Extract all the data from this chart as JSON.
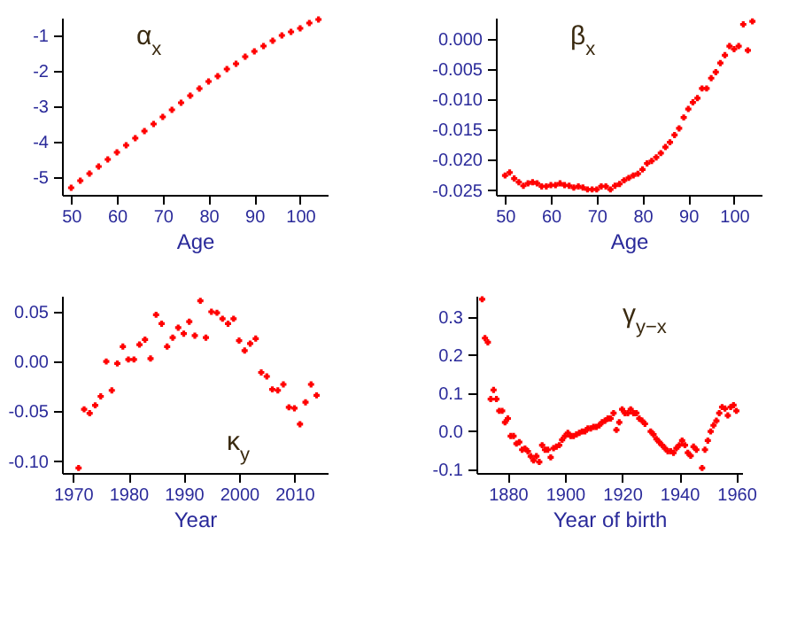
{
  "chart_data": [
    {
      "type": "scatter",
      "title": "α$_{x}$",
      "xlabel": "Age",
      "color": "#ff0000",
      "marker": "cross",
      "xlim": [
        48,
        106
      ],
      "xticks": [
        50,
        60,
        70,
        80,
        90,
        100
      ],
      "ylim": [
        -5.5,
        -0.5
      ],
      "yticks": [
        -5,
        -4,
        -3,
        -2,
        -1
      ],
      "x": [
        50,
        52,
        54,
        56,
        58,
        60,
        62,
        64,
        66,
        68,
        70,
        72,
        74,
        76,
        78,
        80,
        82,
        84,
        86,
        88,
        90,
        92,
        94,
        96,
        98,
        100,
        102,
        104
      ],
      "values": [
        -5.3,
        -5.1,
        -4.9,
        -4.7,
        -4.5,
        -4.3,
        -4.1,
        -3.9,
        -3.7,
        -3.5,
        -3.3,
        -3.1,
        -2.9,
        -2.7,
        -2.5,
        -2.3,
        -2.15,
        -1.95,
        -1.8,
        -1.6,
        -1.45,
        -1.3,
        -1.15,
        -1.0,
        -0.9,
        -0.8,
        -0.65,
        -0.55
      ]
    },
    {
      "type": "scatter",
      "title": "β$_{x}$",
      "xlabel": "Age",
      "color": "#ff0000",
      "marker": "cross",
      "xlim": [
        48,
        106
      ],
      "xticks": [
        50,
        60,
        70,
        80,
        90,
        100
      ],
      "ylim": [
        -0.0258,
        0.0035
      ],
      "yticks": [
        {
          "value": -0.025,
          "label": "-0.025"
        },
        {
          "value": -0.02,
          "label": "-0.020"
        },
        {
          "value": -0.015,
          "label": "-0.015"
        },
        {
          "value": -0.01,
          "label": "-0.010"
        },
        {
          "value": -0.005,
          "label": "-0.005"
        },
        {
          "value": 0,
          "label": "0.000"
        }
      ],
      "x": [
        50,
        51,
        52,
        53,
        54,
        55,
        56,
        57,
        58,
        59,
        60,
        61,
        62,
        63,
        64,
        65,
        66,
        67,
        68,
        69,
        70,
        71,
        72,
        73,
        74,
        75,
        76,
        77,
        78,
        79,
        80,
        81,
        82,
        83,
        84,
        85,
        86,
        87,
        88,
        89,
        90,
        91,
        92,
        93,
        94,
        95,
        96,
        97,
        98,
        99,
        100,
        101,
        102,
        103,
        104
      ],
      "values": [
        -0.0226,
        -0.0221,
        -0.0231,
        -0.0237,
        -0.0243,
        -0.0239,
        -0.0237,
        -0.0239,
        -0.0244,
        -0.0244,
        -0.0242,
        -0.0242,
        -0.0239,
        -0.0242,
        -0.0243,
        -0.0246,
        -0.0244,
        -0.0246,
        -0.0249,
        -0.0249,
        -0.0249,
        -0.0244,
        -0.0244,
        -0.0249,
        -0.0243,
        -0.024,
        -0.0234,
        -0.023,
        -0.0226,
        -0.0223,
        -0.0216,
        -0.0206,
        -0.0202,
        -0.0196,
        -0.0189,
        -0.0179,
        -0.0171,
        -0.0159,
        -0.0148,
        -0.013,
        -0.0116,
        -0.0105,
        -0.0098,
        -0.0082,
        -0.0082,
        -0.0065,
        -0.0055,
        -0.004,
        -0.0027,
        -0.0012,
        -0.0017,
        -0.0012,
        0.0024,
        -0.0019,
        0.0029
      ]
    },
    {
      "type": "scatter",
      "title": "κ$_{y}$",
      "xlabel": "Year",
      "color": "#ff0000",
      "marker": "cross",
      "xlim": [
        1968,
        2016
      ],
      "xticks": [
        1970,
        1980,
        1990,
        2000,
        2010
      ],
      "ylim": [
        -0.112,
        0.066
      ],
      "yticks": [
        {
          "value": -0.1,
          "label": "-0.10"
        },
        {
          "value": -0.05,
          "label": "-0.05"
        },
        {
          "value": 0,
          "label": "0.00"
        },
        {
          "value": 0.05,
          "label": "0.05"
        }
      ],
      "x": [
        1971,
        1972,
        1973,
        1974,
        1975,
        1976,
        1977,
        1978,
        1979,
        1980,
        1981,
        1982,
        1983,
        1984,
        1985,
        1986,
        1987,
        1988,
        1989,
        1990,
        1991,
        1992,
        1993,
        1994,
        1995,
        1996,
        1997,
        1998,
        1999,
        2000,
        2001,
        2002,
        2003,
        2004,
        2005,
        2006,
        2007,
        2008,
        2009,
        2010,
        2011,
        2012,
        2013,
        2014
      ],
      "values": [
        -0.107,
        -0.048,
        -0.052,
        -0.044,
        -0.035,
        0.0,
        -0.029,
        -0.002,
        0.015,
        0.002,
        0.002,
        0.017,
        0.022,
        0.003,
        0.047,
        0.038,
        0.015,
        0.024,
        0.034,
        0.028,
        0.04,
        0.026,
        0.061,
        0.024,
        0.05,
        0.049,
        0.043,
        0.038,
        0.043,
        0.021,
        0.011,
        0.018,
        0.023,
        -0.011,
        -0.015,
        -0.028,
        -0.029,
        -0.023,
        -0.046,
        -0.047,
        -0.063,
        -0.041,
        -0.023,
        -0.034
      ]
    },
    {
      "type": "scatter",
      "title": "γ$_{y−x}$",
      "xlabel": "Year of birth",
      "color": "#ff0000",
      "marker": "cross",
      "xlim": [
        1869,
        1962
      ],
      "xticks": [
        1880,
        1900,
        1920,
        1940,
        1960
      ],
      "ylim": [
        -0.11,
        0.355
      ],
      "yticks": [
        {
          "value": -0.1,
          "label": "-0.1"
        },
        {
          "value": 0,
          "label": "0.0"
        },
        {
          "value": 0.1,
          "label": "0.1"
        },
        {
          "value": 0.2,
          "label": "0.2"
        },
        {
          "value": 0.3,
          "label": "0.3"
        }
      ],
      "x": [
        1871,
        1872,
        1873,
        1874,
        1875,
        1876,
        1877,
        1878,
        1879,
        1880,
        1881,
        1882,
        1883,
        1884,
        1885,
        1886,
        1887,
        1888,
        1889,
        1890,
        1891,
        1892,
        1893,
        1894,
        1895,
        1896,
        1897,
        1898,
        1899,
        1900,
        1901,
        1902,
        1903,
        1904,
        1905,
        1906,
        1907,
        1908,
        1909,
        1910,
        1911,
        1912,
        1913,
        1914,
        1915,
        1916,
        1917,
        1918,
        1919,
        1920,
        1921,
        1922,
        1923,
        1924,
        1925,
        1926,
        1927,
        1928,
        1930,
        1931,
        1932,
        1933,
        1934,
        1935,
        1936,
        1937,
        1938,
        1939,
        1940,
        1941,
        1942,
        1943,
        1944,
        1945,
        1946,
        1948,
        1949,
        1950,
        1951,
        1952,
        1953,
        1954,
        1955,
        1956,
        1957,
        1958,
        1959,
        1960
      ],
      "values": [
        0.346,
        0.244,
        0.233,
        0.084,
        0.108,
        0.084,
        0.053,
        0.053,
        0.023,
        0.033,
        -0.013,
        -0.013,
        -0.033,
        -0.029,
        -0.049,
        -0.046,
        -0.053,
        -0.066,
        -0.077,
        -0.066,
        -0.081,
        -0.037,
        -0.049,
        -0.049,
        -0.069,
        -0.045,
        -0.041,
        -0.037,
        -0.023,
        -0.013,
        -0.005,
        -0.013,
        -0.013,
        -0.009,
        -0.005,
        -0.001,
        -0.001,
        0.007,
        0.007,
        0.011,
        0.011,
        0.015,
        0.023,
        0.027,
        0.033,
        0.033,
        0.047,
        0.003,
        0.023,
        0.057,
        0.047,
        0.047,
        0.057,
        0.047,
        0.047,
        0.033,
        0.027,
        0.019,
        -0.001,
        -0.009,
        -0.021,
        -0.029,
        -0.037,
        -0.045,
        -0.053,
        -0.053,
        -0.057,
        -0.045,
        -0.037,
        -0.025,
        -0.037,
        -0.057,
        -0.065,
        -0.041,
        -0.049,
        -0.097,
        -0.049,
        -0.025,
        -0.001,
        0.015,
        0.027,
        0.047,
        0.063,
        0.059,
        0.041,
        0.063,
        0.068,
        0.053
      ]
    }
  ]
}
